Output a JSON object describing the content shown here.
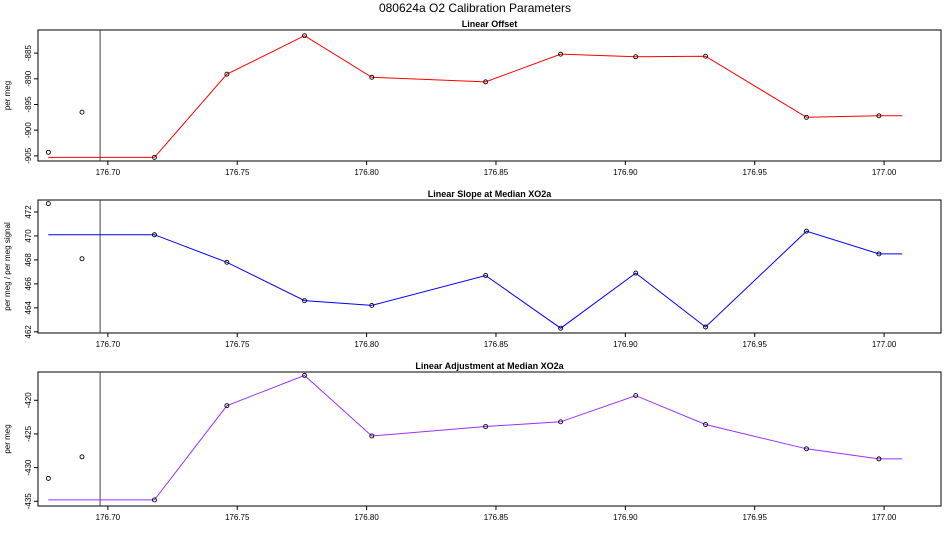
{
  "title": "080624a   O2 Calibration Parameters",
  "chart_data": [
    {
      "type": "line",
      "title": "Linear Offset",
      "ylabel": "per meg",
      "color": "#ff0000",
      "xlim": [
        176.673,
        177.022
      ],
      "ylim": [
        -906,
        -880.5
      ],
      "xticks": [
        176.7,
        176.75,
        176.8,
        176.85,
        176.9,
        176.95,
        177.0
      ],
      "xtick_labels": [
        "176.70",
        "176.75",
        "176.80",
        "176.85",
        "176.90",
        "176.95",
        "177.00"
      ],
      "yticks": [
        -905,
        -900,
        -895,
        -890,
        -885
      ],
      "ytick_labels": [
        "-905",
        "-900",
        "-895",
        "-890",
        "-885"
      ],
      "vline_x": 176.697,
      "line": {
        "x": [
          176.677,
          176.718,
          176.746,
          176.776,
          176.802,
          176.846,
          176.875,
          176.904,
          176.931,
          176.97,
          176.998,
          177.007
        ],
        "y": [
          -905.3,
          -905.3,
          -889.1,
          -881.6,
          -889.7,
          -890.6,
          -885.2,
          -885.7,
          -885.6,
          -897.5,
          -897.2,
          -897.2
        ]
      },
      "points": {
        "x": [
          176.677,
          176.69,
          176.718,
          176.746,
          176.776,
          176.802,
          176.846,
          176.875,
          176.904,
          176.931,
          176.97,
          176.998
        ],
        "y": [
          -904.3,
          -896.5,
          -905.3,
          -889.1,
          -881.6,
          -889.7,
          -890.6,
          -885.2,
          -885.7,
          -885.6,
          -897.5,
          -897.2
        ]
      }
    },
    {
      "type": "line",
      "title": "Linear Slope at Median XO2a",
      "ylabel": "per meg / per meg signal",
      "color": "#0000ff",
      "xlim": [
        176.673,
        177.022
      ],
      "ylim": [
        461.9,
        473.0
      ],
      "xticks": [
        176.7,
        176.75,
        176.8,
        176.85,
        176.9,
        176.95,
        177.0
      ],
      "xtick_labels": [
        "176.70",
        "176.75",
        "176.80",
        "176.85",
        "176.90",
        "176.95",
        "177.00"
      ],
      "yticks": [
        462,
        464,
        466,
        468,
        470,
        472
      ],
      "ytick_labels": [
        "462",
        "464",
        "466",
        "468",
        "470",
        "472"
      ],
      "vline_x": 176.697,
      "line": {
        "x": [
          176.677,
          176.718,
          176.746,
          176.776,
          176.802,
          176.846,
          176.875,
          176.904,
          176.931,
          176.97,
          176.998,
          177.007
        ],
        "y": [
          470.1,
          470.1,
          467.8,
          464.6,
          464.2,
          466.7,
          462.3,
          466.9,
          462.4,
          470.4,
          468.5,
          468.5
        ]
      },
      "points": {
        "x": [
          176.677,
          176.69,
          176.718,
          176.746,
          176.776,
          176.802,
          176.846,
          176.875,
          176.904,
          176.931,
          176.97,
          176.998
        ],
        "y": [
          472.7,
          468.1,
          470.1,
          467.8,
          464.6,
          464.2,
          466.7,
          462.3,
          466.9,
          462.4,
          470.4,
          468.5
        ]
      }
    },
    {
      "type": "line",
      "title": "Linear Adjustment at Median XO2a",
      "ylabel": "per meg",
      "color": "#9b30ff",
      "xlim": [
        176.673,
        177.022
      ],
      "ylim": [
        -435.7,
        -415.8
      ],
      "xticks": [
        176.7,
        176.75,
        176.8,
        176.85,
        176.9,
        176.95,
        177.0
      ],
      "xtick_labels": [
        "176.70",
        "176.75",
        "176.80",
        "176.85",
        "176.90",
        "176.95",
        "177.00"
      ],
      "yticks": [
        -435,
        -430,
        -425,
        -420
      ],
      "ytick_labels": [
        "-435",
        "-430",
        "-425",
        "-420"
      ],
      "vline_x": 176.697,
      "line": {
        "x": [
          176.677,
          176.718,
          176.746,
          176.776,
          176.802,
          176.846,
          176.875,
          176.904,
          176.931,
          176.97,
          176.998,
          177.007
        ],
        "y": [
          -434.8,
          -434.8,
          -420.8,
          -416.3,
          -425.3,
          -423.9,
          -423.2,
          -419.3,
          -423.6,
          -427.2,
          -428.7,
          -428.7
        ]
      },
      "points": {
        "x": [
          176.677,
          176.69,
          176.718,
          176.746,
          176.776,
          176.802,
          176.846,
          176.875,
          176.904,
          176.931,
          176.97,
          176.998
        ],
        "y": [
          -431.6,
          -428.4,
          -434.8,
          -420.8,
          -416.3,
          -425.3,
          -423.9,
          -423.2,
          -419.3,
          -423.6,
          -427.2,
          -428.7
        ]
      }
    }
  ]
}
